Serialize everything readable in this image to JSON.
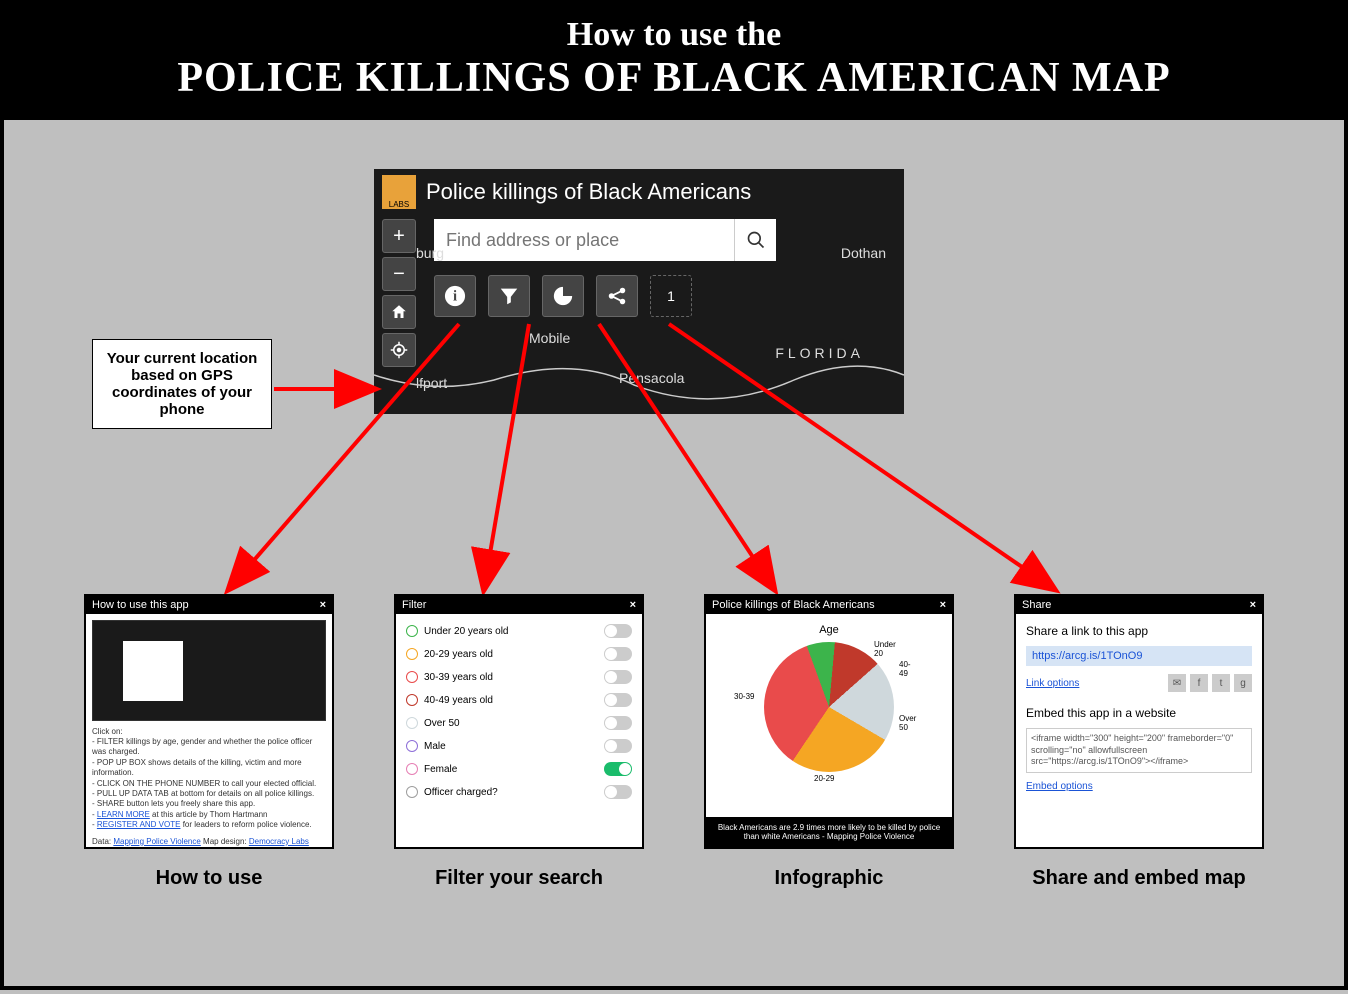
{
  "header": {
    "line1": "How to use the",
    "line2": "POLICE KILLINGS OF BLACK AMERICAN MAP"
  },
  "colors": {
    "page_bg": "#bfbfbf",
    "header_bg": "#000000",
    "header_text": "#ffffff",
    "arrow": "#ff0000",
    "map_bg": "#1a1a1a",
    "logo_bg": "#e8a23a",
    "toggle_on": "#1abc6b",
    "link": "#1a53d6"
  },
  "mapapp": {
    "logo_text": "LABS",
    "title": "Police killings of Black Americans",
    "search_placeholder": "Find address or place",
    "places": {
      "mobile": "Mobile",
      "pensacola": "Pensacola",
      "dothan": "Dothan",
      "florida": "FLORIDA",
      "burg": "burg",
      "lfport": "lfport"
    },
    "count": "1"
  },
  "callout": {
    "text": "Your current location based on GPS coordinates of your phone"
  },
  "card_labels": {
    "c1": "How to use",
    "c2": "Filter your search",
    "c3": "Infographic",
    "c4": "Share and embed map"
  },
  "card1": {
    "title": "How to use this app",
    "close": "×",
    "body": {
      "click_on": "Click on:",
      "b1": "- FILTER killings by age, gender and whether the police officer was charged.",
      "b2": "- POP UP BOX shows details of the killing, victim and more information.",
      "b3": "- CLICK ON THE PHONE NUMBER to call your elected official.",
      "b4": "- PULL UP DATA TAB at bottom for details on all police killings.",
      "b5": "- SHARE button lets you freely share this app.",
      "b6a": "- ",
      "b6link": "LEARN MORE",
      "b6b": " at this article by Thom Hartmann",
      "b7a": "- ",
      "b7link": "REGISTER AND VOTE",
      "b7b": " for leaders to reform police violence.",
      "footer_a": "Data: ",
      "footer_link1": "Mapping Police Violence",
      "footer_b": " Map design: ",
      "footer_link2": "Democracy Labs"
    }
  },
  "card2": {
    "title": "Filter",
    "close": "×",
    "rows": [
      {
        "label": "Under 20 years old",
        "color": "#3cb44b",
        "on": false
      },
      {
        "label": "20-29 years old",
        "color": "#f5a623",
        "on": false
      },
      {
        "label": "30-39 years old",
        "color": "#e94b4b",
        "on": false
      },
      {
        "label": "40-49 years old",
        "color": "#c0392b",
        "on": false
      },
      {
        "label": "Over 50",
        "color": "#cfd8dc",
        "on": false
      },
      {
        "label": "Male",
        "color": "#8e6fd8",
        "on": false
      },
      {
        "label": "Female",
        "color": "#e67fb4",
        "on": true
      },
      {
        "label": "Officer charged?",
        "color": "#9e9e9e",
        "on": false
      }
    ]
  },
  "card3": {
    "title": "Police killings of Black Americans",
    "close": "×",
    "chart": {
      "type": "pie",
      "title": "Age",
      "title_fontsize": 11,
      "slices": [
        {
          "label": "Under 20",
          "value": 7,
          "color": "#3cb44b"
        },
        {
          "label": "40-49",
          "value": 12,
          "color": "#c0392b"
        },
        {
          "label": "Over 50",
          "value": 20,
          "color": "#cfd8dc"
        },
        {
          "label": "20-29",
          "value": 26,
          "color": "#f5a623"
        },
        {
          "label": "30-39",
          "value": 35,
          "color": "#e94b4b"
        }
      ],
      "label_fontsize": 8
    },
    "caption": "Black Americans are 2.9 times more likely to be killed by police than white Americans - Mapping Police Violence"
  },
  "card4": {
    "title": "Share",
    "close": "×",
    "share_heading": "Share a link to this app",
    "url": "https://arcg.is/1TOnO9",
    "link_options": "Link options",
    "embed_heading": "Embed this app in a website",
    "embed_code": "<iframe width=\"300\" height=\"200\" frameborder=\"0\" scrolling=\"no\" allowfullscreen src=\"https://arcg.is/1TOnO9\"></iframe>",
    "embed_options": "Embed options",
    "social_icons": [
      "mail-icon",
      "facebook-icon",
      "twitter-icon",
      "google-icon"
    ]
  }
}
